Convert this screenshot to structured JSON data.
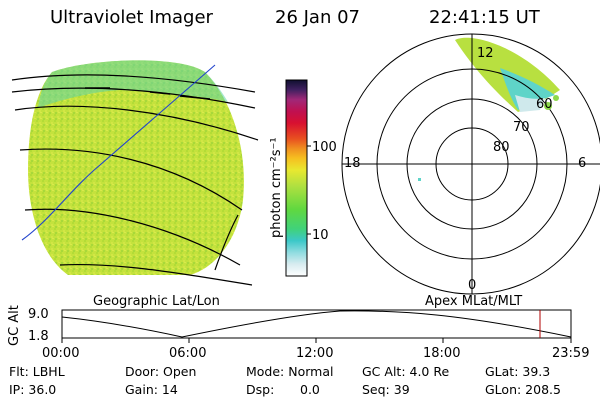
{
  "header": {
    "title": "Ultraviolet Imager",
    "date": "26 Jan 07",
    "time": "22:41:15 UT"
  },
  "colorbar": {
    "unit_label": "photon cm⁻²s⁻¹",
    "ticks": [
      "100",
      "10"
    ]
  },
  "geo_panel": {
    "label": "Geographic Lat/Lon"
  },
  "polar_panel": {
    "label": "Apex MLat/MLT",
    "mlt_labels": {
      "top": "12",
      "left": "18",
      "right": "6",
      "bottom": "0"
    },
    "lat_labels": [
      "80",
      "70",
      "60"
    ]
  },
  "altitude_panel": {
    "ylabel": "GC Alt",
    "yticks": [
      "9.0",
      "1.8"
    ],
    "xticks": [
      "00:00",
      "06:00",
      "12:00",
      "18:00",
      "23:59"
    ]
  },
  "footer": {
    "flt": "Flt: LBHL",
    "ip": "IP: 36.0",
    "door": "Door: Open",
    "gain": "Gain: 14",
    "mode": "Mode: Normal",
    "dsp_label": "Dsp:",
    "dsp_value": "0.0",
    "gc_alt": "GC Alt: 4.0 Re",
    "seq": "Seq: 39",
    "glat": "GLat:  39.3",
    "glon": "GLon: 208.5"
  },
  "colors": {
    "disk_fill": "#c3e33a",
    "aurora_blue": "#5fd4c8",
    "orbit_line": "#000000",
    "marker_red": "#b00000"
  }
}
